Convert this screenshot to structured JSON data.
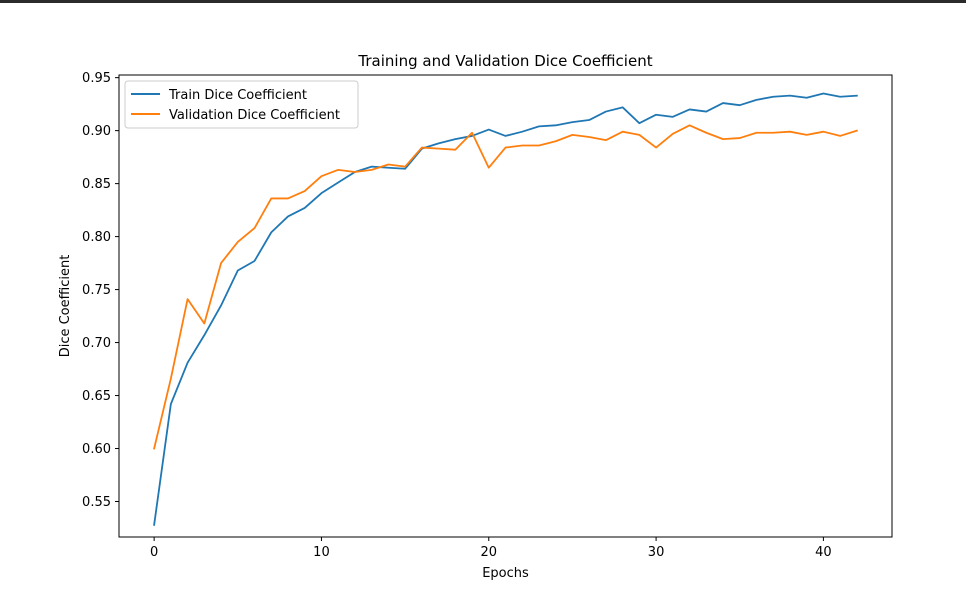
{
  "chart_data": {
    "type": "line",
    "title": "Training and Validation Dice Coefficient",
    "xlabel": "Epochs",
    "ylabel": "Dice Coefficient",
    "xlim": [
      -2.1,
      44.1
    ],
    "ylim": [
      0.5165,
      0.9525
    ],
    "xticks": [
      0,
      10,
      20,
      30,
      40
    ],
    "yticks": [
      0.55,
      0.6,
      0.65,
      0.7,
      0.75,
      0.8,
      0.85,
      0.9,
      0.95
    ],
    "ytick_labels": [
      "0.55",
      "0.60",
      "0.65",
      "0.70",
      "0.75",
      "0.80",
      "0.85",
      "0.90",
      "0.95"
    ],
    "grid": false,
    "legend_position": "top-left",
    "x": [
      0,
      1,
      2,
      3,
      4,
      5,
      6,
      7,
      8,
      9,
      10,
      11,
      12,
      13,
      14,
      15,
      16,
      17,
      18,
      19,
      20,
      21,
      22,
      23,
      24,
      25,
      26,
      27,
      28,
      29,
      30,
      31,
      32,
      33,
      34,
      35,
      36,
      37,
      38,
      39,
      40,
      41,
      42
    ],
    "series": [
      {
        "name": "Train Dice Coefficient",
        "color": "#1f77b4",
        "values": [
          0.528,
          0.642,
          0.681,
          0.707,
          0.735,
          0.768,
          0.777,
          0.804,
          0.819,
          0.827,
          0.841,
          0.851,
          0.861,
          0.866,
          0.865,
          0.864,
          0.883,
          0.888,
          0.892,
          0.895,
          0.901,
          0.895,
          0.899,
          0.904,
          0.905,
          0.908,
          0.91,
          0.918,
          0.922,
          0.907,
          0.915,
          0.913,
          0.92,
          0.918,
          0.926,
          0.924,
          0.929,
          0.932,
          0.933,
          0.931,
          0.935,
          0.932,
          0.933
        ]
      },
      {
        "name": "Validation Dice Coefficient",
        "color": "#ff7f0e",
        "values": [
          0.6,
          0.666,
          0.741,
          0.718,
          0.775,
          0.795,
          0.808,
          0.836,
          0.836,
          0.843,
          0.857,
          0.863,
          0.861,
          0.863,
          0.868,
          0.866,
          0.884,
          0.883,
          0.882,
          0.898,
          0.865,
          0.884,
          0.886,
          0.886,
          0.89,
          0.896,
          0.894,
          0.891,
          0.899,
          0.896,
          0.884,
          0.897,
          0.905,
          0.898,
          0.892,
          0.893,
          0.898,
          0.898,
          0.899,
          0.896,
          0.899,
          0.895,
          0.9
        ]
      }
    ]
  }
}
